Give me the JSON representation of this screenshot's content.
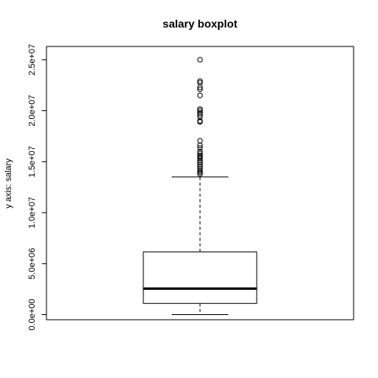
{
  "chart_data": {
    "type": "boxplot",
    "title": "salary boxplot",
    "xlabel": "",
    "ylabel": "y axis: salary",
    "ylim": [
      -500000,
      26300000
    ],
    "yticks": [
      {
        "value": 0,
        "label": "0.0e+00"
      },
      {
        "value": 5000000,
        "label": "5.0e+06"
      },
      {
        "value": 10000000,
        "label": "1.0e+07"
      },
      {
        "value": 15000000,
        "label": "1.5e+07"
      },
      {
        "value": 20000000,
        "label": "2.0e+07"
      },
      {
        "value": 25000000,
        "label": "2.5e+07"
      }
    ],
    "box": {
      "min": 0,
      "q1": 1100000,
      "median": 2550000,
      "q3": 6150000,
      "whisker_high": 13500000
    },
    "outliers": [
      13800000,
      13950000,
      14100000,
      14300000,
      14500000,
      14700000,
      14900000,
      15100000,
      15300000,
      15450000,
      15600000,
      15800000,
      16000000,
      16350000,
      16600000,
      17050000,
      18900000,
      19000000,
      19400000,
      19600000,
      19800000,
      20000000,
      20150000,
      21500000,
      22100000,
      22300000,
      22750000,
      22900000,
      25000000
    ],
    "grid": false
  }
}
